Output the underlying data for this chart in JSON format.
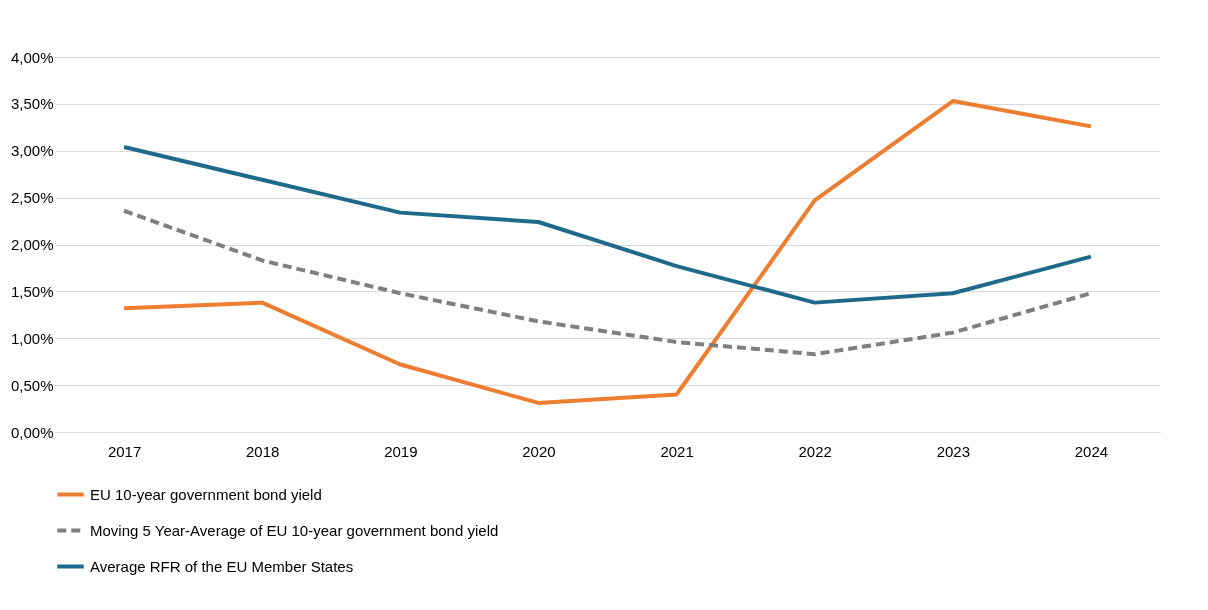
{
  "chart_data": {
    "type": "line",
    "categories": [
      "2017",
      "2018",
      "2019",
      "2020",
      "2021",
      "2022",
      "2023",
      "2024"
    ],
    "series": [
      {
        "name": "EU 10-year government bond yield",
        "color": "#ed7d31",
        "line_style": "solid",
        "values": [
          1.32,
          1.38,
          0.72,
          0.31,
          0.4,
          2.47,
          3.53,
          3.26
        ]
      },
      {
        "name": "Moving 5 Year-Average of EU 10-year government bond yield",
        "color": "#7f7f7f",
        "line_style": "dashed",
        "values": [
          2.36,
          1.83,
          1.48,
          1.18,
          0.96,
          0.83,
          1.06,
          1.48
        ]
      },
      {
        "name": "Average RFR of the EU Member States",
        "color": "#1f6a8a",
        "line_style": "solid",
        "values": [
          3.04,
          2.69,
          2.34,
          2.24,
          1.77,
          1.38,
          1.48,
          1.87
        ]
      }
    ],
    "ylim": [
      0,
      4
    ],
    "yticks": [
      {
        "value": 0,
        "label": "0,00%"
      },
      {
        "value": 0.5,
        "label": "0,50%"
      },
      {
        "value": 1,
        "label": "1,00%"
      },
      {
        "value": 1.5,
        "label": "1,50%"
      },
      {
        "value": 2,
        "label": "2,00%"
      },
      {
        "value": 2.5,
        "label": "2,50%"
      },
      {
        "value": 3,
        "label": "3,00%"
      },
      {
        "value": 3.5,
        "label": "3,50%"
      },
      {
        "value": 4,
        "label": "4,00%"
      }
    ],
    "grid": "y",
    "legend": "bottom",
    "marker": "none"
  }
}
